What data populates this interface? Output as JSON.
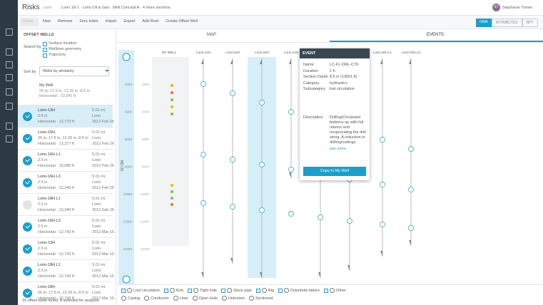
{
  "app": {
    "title": "Risks",
    "project": "Lorio",
    "breadcrumb": "Lorio 18-1 · Lorio Oil & Gas · Well Concept A · 4 more sections",
    "user_initials": "ST",
    "user_name": "Stephanie Turner"
  },
  "toolbar": {
    "buttons": [
      "Share",
      "New",
      "Remove",
      "Zero Index",
      "Import",
      "Export",
      "Add Root",
      "Create Offset Well"
    ],
    "views": [
      "OWA",
      "ATTRIBUTES",
      "NPT"
    ]
  },
  "sidebar": {
    "heading": "OFFSET WELLS",
    "search_label": "Search by",
    "search_options": [
      "Surface location",
      "Wellbore geometry",
      "Trajectory"
    ],
    "sort_label": "Sort by",
    "sort_value": "Wells by similarity",
    "my_well": {
      "name": "My Well",
      "sizes": "26 in, 17.5 in, 12.25 in, 8.5 in",
      "type": "Horizontal · 13,341 ft"
    },
    "wells": [
      {
        "name": "Lorio-13H",
        "sizes": "2.5 in",
        "type": "Horizontal · 12,770 ft",
        "distance": "5.01 mi",
        "field": "Lorio",
        "date": "2012 Feb 26",
        "checked": true,
        "active": true
      },
      {
        "name": "Lorio-15H",
        "sizes": "26 in, 17.5 in, 12.25 in, 8.5 in",
        "type": "Horizontal · 13,377 ft",
        "distance": "5.01 mi",
        "field": "Lorio",
        "date": "2012 Feb 26",
        "checked": true,
        "active": false
      },
      {
        "name": "Lorio-16H L1",
        "sizes": "2.5 in",
        "type": "Horizontal · 15,680 ft",
        "distance": "5.01 mi",
        "field": "Lorio",
        "date": "2012 Feb 26",
        "checked": true,
        "active": false
      },
      {
        "name": "Lorio-16H L2",
        "sizes": "2.5 in",
        "type": "Horizontal · 12,340 ft",
        "distance": "5.01 mi",
        "field": "Lorio",
        "date": "2012 Feb 26",
        "checked": true,
        "active": false
      },
      {
        "name": "Lorio-18H L1",
        "sizes": "2.5 in",
        "type": "Horizontal · 12,340 ft",
        "distance": "5.01 mi",
        "field": "Lorio",
        "date": "2012 Feb 26",
        "checked": false,
        "active": false
      },
      {
        "name": "Lorio-16H L3",
        "sizes": "2.5 in",
        "type": "Horizontal · 12,743 ft",
        "distance": "5.01 mi",
        "field": "Lorio",
        "date": "2012 Mar 15",
        "checked": true,
        "active": false
      },
      {
        "name": "Lorio-13H",
        "sizes": "2.5 in",
        "type": "Horizontal · 12,743 ft",
        "distance": "5.01 mi",
        "field": "Lorio",
        "date": "2012 Mar 15",
        "checked": true,
        "active": false
      },
      {
        "name": "Lorio-18H L1",
        "sizes": "2.5 in",
        "type": "Horizontal · 12,743 ft",
        "distance": "5.01 mi",
        "field": "Lorio",
        "date": "2012 Mar 15",
        "checked": true,
        "active": false
      },
      {
        "name": "Lorio-18H",
        "sizes": "26 in, 17.5 in, 12.25 in, 8.5 in",
        "type": "Horizontal · 12,743 ft",
        "distance": "5.01 mi",
        "field": "Lorio",
        "date": "2012 Mar 15",
        "checked": true,
        "active": false
      }
    ],
    "footer": "16 offset wells found. 8 selected for analysis."
  },
  "tabs": [
    "MAP",
    "EVENTS"
  ],
  "chart": {
    "axis_label": "MD (ft)",
    "depths": [
      "2000",
      "4000",
      "6000",
      "8000",
      "10000",
      "12000",
      "14000"
    ],
    "columns": [
      "MY WELL",
      "Lorio-13H",
      "Lorio-15H",
      "Lorio-16H",
      "Lorio-13H",
      "Lorio-16H",
      "Lorio-16H",
      "Lorio-18H L1",
      "Lorio-18H L3"
    ]
  },
  "event": {
    "heading": "EVENT",
    "fields": [
      {
        "label": "Name",
        "value": "LC-FL-DRL-C7K"
      },
      {
        "label": "Duration",
        "value": "1 h"
      },
      {
        "label": "Section Depth",
        "value": "8.5 in (13601 ft)"
      },
      {
        "label": "Category",
        "value": "hydraulics"
      },
      {
        "label": "Subcategory",
        "value": "lost circulation"
      }
    ],
    "description_label": "Description",
    "description": "Drilling/Circulated bottoms up with full returns and reciprocating the drill string. A reduction in drilling/cuttings observed after",
    "more": "see more",
    "button": "Copy to My Well"
  },
  "legend": {
    "events": [
      "Lost circulation",
      "Kick",
      "Tight hole",
      "Stuck pipe",
      "Rig",
      "Downhole failure",
      "Other"
    ],
    "sections": [
      "Casing",
      "Conductor",
      "Liner",
      "Open Hole",
      "Unknown",
      "Sectioned"
    ]
  }
}
